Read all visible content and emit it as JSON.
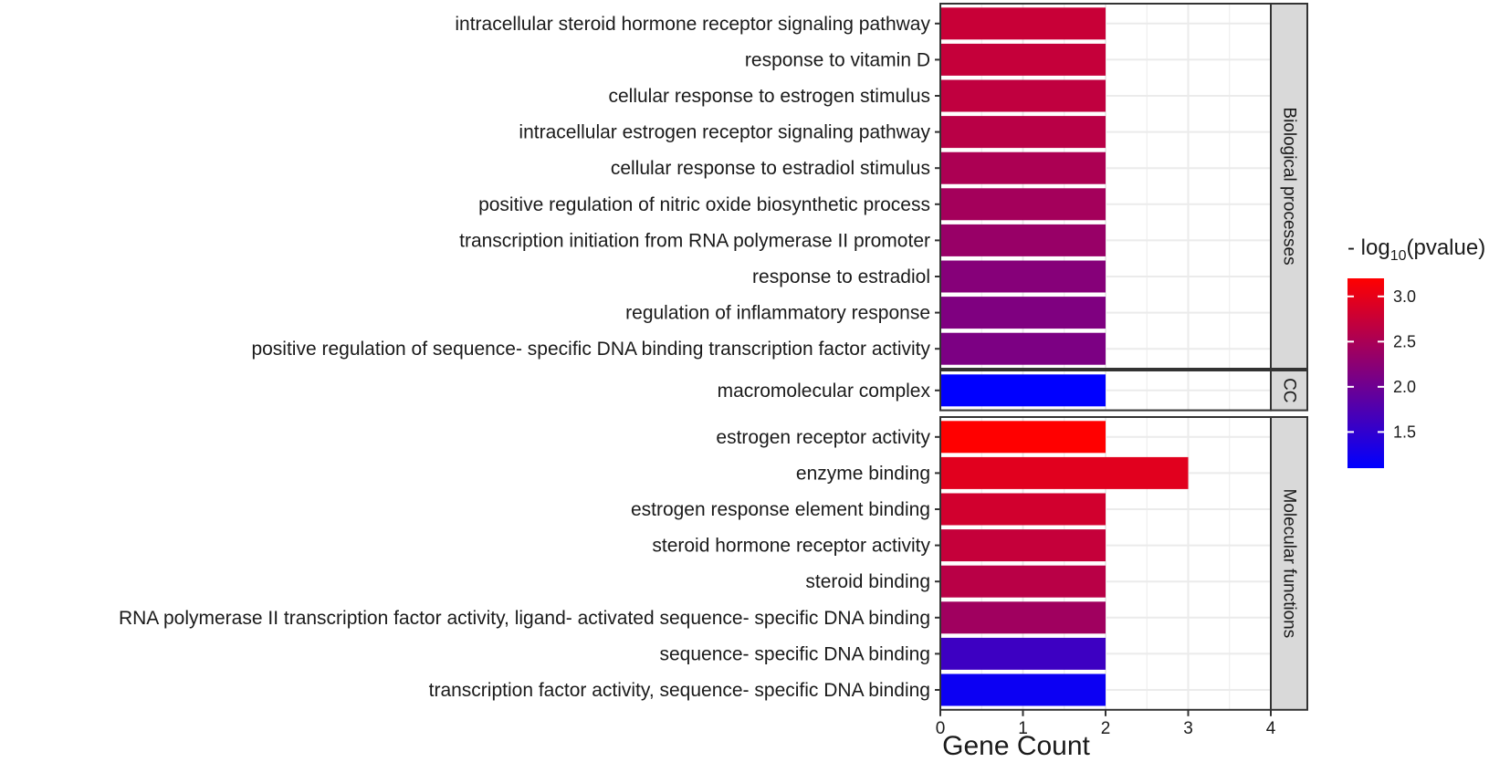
{
  "chart_data": {
    "type": "bar",
    "orientation": "horizontal",
    "xlabel": "Gene Count",
    "xlim": [
      0,
      4
    ],
    "x_ticks": [
      0,
      1,
      2,
      3,
      4
    ],
    "grid": true,
    "legend": {
      "title_prefix": "- log",
      "title_sub": "10",
      "title_suffix": "(pvalue)",
      "placement": "right",
      "ticks": [
        1.5,
        2.0,
        2.5,
        3.0
      ],
      "tick_labels": [
        "1.5",
        "2.0",
        "2.5",
        "3.0"
      ],
      "range": [
        1.1,
        3.2
      ],
      "low_color": "#0000ff",
      "high_color": "#ff0000"
    },
    "facets": [
      {
        "name": "Biological processes",
        "bars": [
          {
            "term": "intracellular steroid hormone receptor signaling pathway",
            "count": 2,
            "log10p": 2.75
          },
          {
            "term": "response to vitamin D",
            "count": 2,
            "log10p": 2.72
          },
          {
            "term": "cellular response to estrogen stimulus",
            "count": 2,
            "log10p": 2.68
          },
          {
            "term": "intracellular estrogen receptor signaling pathway",
            "count": 2,
            "log10p": 2.62
          },
          {
            "term": "cellular response to estradiol stimulus",
            "count": 2,
            "log10p": 2.52
          },
          {
            "term": "positive regulation of nitric oxide biosynthetic process",
            "count": 2,
            "log10p": 2.45
          },
          {
            "term": "transcription initiation from RNA polymerase II promoter",
            "count": 2,
            "log10p": 2.35
          },
          {
            "term": "response to estradiol",
            "count": 2,
            "log10p": 2.2
          },
          {
            "term": "regulation of inflammatory response",
            "count": 2,
            "log10p": 2.15
          },
          {
            "term": "positive regulation of sequence- specific DNA binding transcription factor activity",
            "count": 2,
            "log10p": 2.12
          }
        ]
      },
      {
        "name": "CC",
        "bars": [
          {
            "term": "macromolecular complex",
            "count": 2,
            "log10p": 1.1
          }
        ]
      },
      {
        "name": "Molecular functions",
        "bars": [
          {
            "term": "estrogen receptor activity",
            "count": 2,
            "log10p": 3.2
          },
          {
            "term": "enzyme binding",
            "count": 3,
            "log10p": 2.95
          },
          {
            "term": "estrogen response element binding",
            "count": 2,
            "log10p": 2.82
          },
          {
            "term": "steroid hormone receptor activity",
            "count": 2,
            "log10p": 2.72
          },
          {
            "term": "steroid binding",
            "count": 2,
            "log10p": 2.62
          },
          {
            "term": "RNA polymerase II transcription factor activity, ligand- activated sequence- specific DNA binding",
            "count": 2,
            "log10p": 2.42
          },
          {
            "term": "sequence- specific DNA binding",
            "count": 2,
            "log10p": 1.6
          },
          {
            "term": "transcription factor activity, sequence- specific DNA binding",
            "count": 2,
            "log10p": 1.2
          }
        ]
      }
    ]
  }
}
